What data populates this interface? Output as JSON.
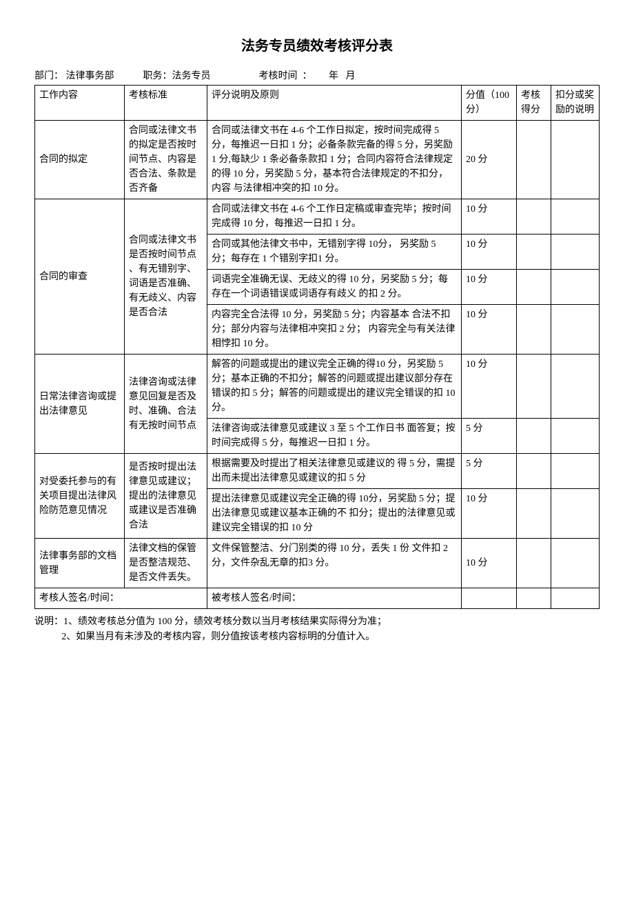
{
  "doc": {
    "title": "法务专员绩效考核评分表",
    "meta": {
      "dept_label": "部门： ",
      "dept_value": "法律事务部",
      "pos_label": "职务：",
      "pos_value": "法务专员",
      "time_label": "考核时间  ：",
      "time_value": "       年   月"
    },
    "headers": {
      "c1": "工作内容",
      "c2": "考核标准",
      "c3": "评分说明及原则",
      "c4": "分值（100 分）",
      "c5": "考核得分",
      "c6": "扣分或奖励的说明"
    },
    "rows": {
      "r1": {
        "work": "合同的拟定",
        "std": "合同或法律文书的拟定是否按时间节点、内容是否合法、条款是否齐备",
        "desc": "合同或法律文书在 4-6 个工作日拟定，按时间完成得 5 分，每推迟一日扣 1 分；必备条款完备的得 5 分，另奖励 1 分,每缺少 1 条必备条款扣 1 分；合同内容符合法律规定的得 10 分，另奖励 5 分，基本符合法律规定的不扣分，内容  与法律相冲突的扣 10 分。",
        "score": "20 分"
      },
      "r2": {
        "work": "合同的审查",
        "std": "合同或法律文书是否按时间节点  、有无错别字、词语是否准确、有无歧义、内容是否合法",
        "desc_a": "合同或法律文书在 4-6 个工作日定稿或审查完毕；按时间完成得 10 分，每推迟一日扣 1 分。",
        "score_a": "10 分",
        "desc_b": "合同或其他法律文书中，无错别字得 10分，  另奖励 5 分；每存在 1 个错别字扣1 分。",
        "score_b": "10 分",
        "desc_c": "词语完全准确无误、无歧义的得 10 分，另奖励 5 分；每存在一个词语错误或词语存有歧义  的扣 2 分。",
        "score_c": "10 分",
        "desc_d": "内容完全合法得 10 分，另奖励 5 分；内容基本  合法不扣分；部分内容与法律相冲突扣 2 分；  内容完全与有关法律相悖扣 10 分。",
        "score_d": "10 分"
      },
      "r3": {
        "work": "日常法律咨询或提出法律意见",
        "std": "法律咨询或法律意见回复是否及时、准确、合法有无按时间节点",
        "desc_a": "解答的问题或提出的建议完全正确的得10  分，另奖励 5 分；基本正确的不扣分；解答的问题或提出建议部分存在错误的扣 5 分；解答的问题或提出的建议完全错误的扣 10 分。",
        "score_a": "10 分",
        "desc_b": "法律咨询或法律意见或建议 3 至 5 个工作日书  面答复；按时间完成得 5 分，每推迟一日扣 1  分。",
        "score_b": "5 分"
      },
      "r4": {
        "work": "对受委托参与的有关项目提出法律风险防范意见情况",
        "std": "是否按时提出法律意见或建议；提出的法律意见或建议是否准确合法",
        "desc_a": "根据需要及时提出了相关法律意见或建议的  得 5 分，需提出而未提出法律意见或建议的扣  5 分",
        "score_a": "5 分",
        "desc_b": "提出法律意见或建议完全正确的得 10分，另奖励 5 分；提出法律意见或建议基本正确的不  扣分；提出的法律意见或建议完全错误的扣 10 分",
        "score_b": "10 分"
      },
      "r5": {
        "work": "法律事务部的文档管理",
        "std": "法律文档的保管是否整洁规范、是否文件丢失。",
        "desc": "文件保管整洁、分门别类的得 10 分，丢失 1 份  文件扣 2 分，文件杂乱无章的扣3 分。",
        "score": "10 分"
      }
    },
    "signrow": {
      "left": "考核人签名/时间：",
      "right": "被考核人签名/时间："
    },
    "notes": {
      "line1": "说明：1、绩效考核总分值为 100 分，绩效考核分数以当月考核结果实际得分为准；",
      "line2": "2、如果当月有未涉及的考核内容，则分值按该考核内容标明的分值计入。"
    }
  }
}
